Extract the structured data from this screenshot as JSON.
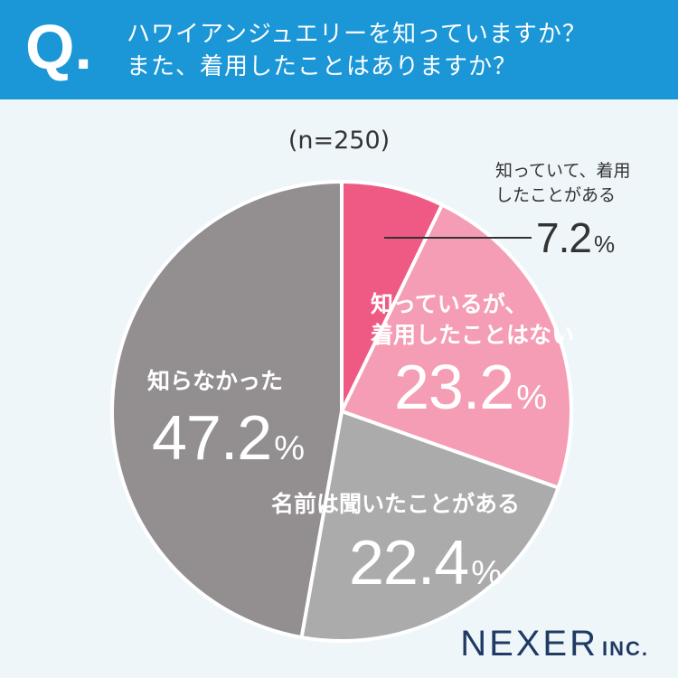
{
  "header": {
    "q_mark": "Q.",
    "line1": "ハワイアンジュエリーを知っていますか？",
    "line2": "また、着用したことはありますか？"
  },
  "sample_note": "(n=250)",
  "colors": {
    "header_bg": "#1b96d7",
    "slice1": "#ee5a83",
    "slice2": "#f59db5",
    "slice3": "#ababab",
    "slice4": "#938f90"
  },
  "chart_data": {
    "type": "pie",
    "title": "",
    "slices": [
      {
        "label_line1": "知っていて、着用",
        "label_line2": "したことがある",
        "value": 7.2,
        "unit": "%",
        "color": "#ee5a83"
      },
      {
        "label_line1": "知っているが、",
        "label_line2": "着用したことはない",
        "value": 23.2,
        "unit": "%",
        "color": "#f59db5"
      },
      {
        "label_line1": "名前は聞いたことがある",
        "label_line2": "",
        "value": 22.4,
        "unit": "%",
        "color": "#ababab"
      },
      {
        "label_line1": "知らなかった",
        "label_line2": "",
        "value": 47.2,
        "unit": "%",
        "color": "#938f90"
      }
    ]
  },
  "logo": {
    "main": "NEXER",
    "suffix": "INC."
  }
}
